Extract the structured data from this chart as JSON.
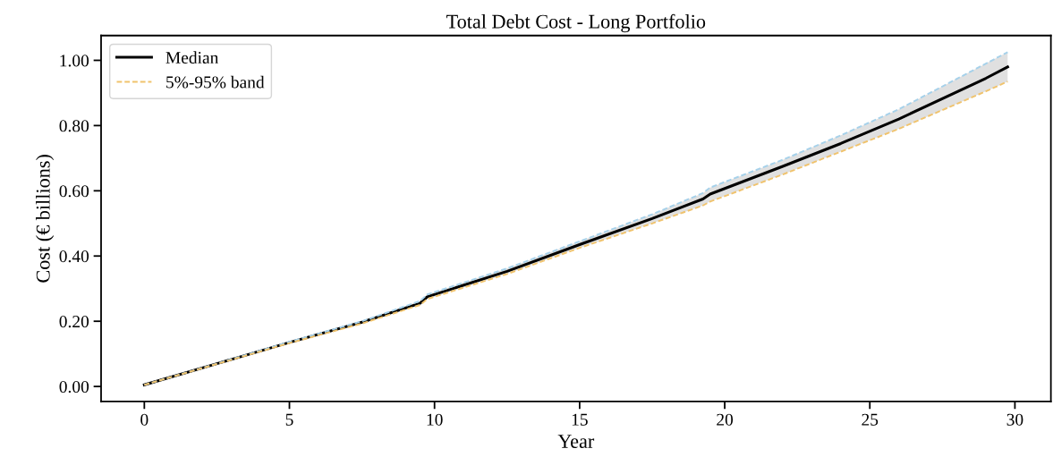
{
  "chart_data": {
    "type": "line",
    "title": "Total Debt Cost - Long Portfolio",
    "xlabel": "Year",
    "ylabel": "Cost (€ billions)",
    "x": [
      0,
      2.5,
      5,
      7.5,
      9.5,
      9.75,
      12.5,
      15,
      17.5,
      19.25,
      19.5,
      22,
      24,
      26,
      29,
      29.75
    ],
    "series": [
      {
        "name": "Median",
        "color": "#000000",
        "line_style": "solid",
        "values": [
          0.005,
          0.07,
          0.135,
          0.197,
          0.255,
          0.275,
          0.353,
          0.435,
          0.515,
          0.575,
          0.59,
          0.675,
          0.745,
          0.82,
          0.945,
          0.98
        ],
        "lower": [
          0.005,
          0.069,
          0.133,
          0.193,
          0.25,
          0.268,
          0.345,
          0.425,
          0.5,
          0.555,
          0.567,
          0.65,
          0.72,
          0.79,
          0.905,
          0.935
        ],
        "upper": [
          0.005,
          0.07,
          0.137,
          0.2,
          0.262,
          0.282,
          0.362,
          0.445,
          0.528,
          0.593,
          0.61,
          0.695,
          0.77,
          0.85,
          0.99,
          1.025
        ]
      },
      {
        "name": "5%-95% band",
        "color": "#f0c36d",
        "line_style": "dashed",
        "values": [
          0.005,
          0.069,
          0.133,
          0.193,
          0.25,
          0.268,
          0.345,
          0.425,
          0.5,
          0.555,
          0.567,
          0.65,
          0.72,
          0.79,
          0.905,
          0.935
        ]
      },
      {
        "color": "#a6d1ea",
        "line_style": "dashed",
        "values": [
          0.005,
          0.07,
          0.137,
          0.2,
          0.262,
          0.282,
          0.362,
          0.445,
          0.528,
          0.593,
          0.61,
          0.695,
          0.77,
          0.85,
          0.99,
          1.025
        ]
      }
    ],
    "xlim": [
      -1.49,
      31.24
    ],
    "ylim": [
      -0.046,
      1.076
    ],
    "xticks": [
      0,
      5,
      10,
      15,
      20,
      25,
      30
    ],
    "yticks": [
      {
        "value": 0,
        "label": "0.00"
      },
      {
        "value": 0.2,
        "label": "0.20"
      },
      {
        "value": 0.4,
        "label": "0.40"
      },
      {
        "value": 0.6,
        "label": "0.60"
      },
      {
        "value": 0.8,
        "label": "0.80"
      },
      {
        "value": 1.0,
        "label": "1.00"
      }
    ],
    "grid": false,
    "legend": "top left",
    "marker": "none"
  }
}
